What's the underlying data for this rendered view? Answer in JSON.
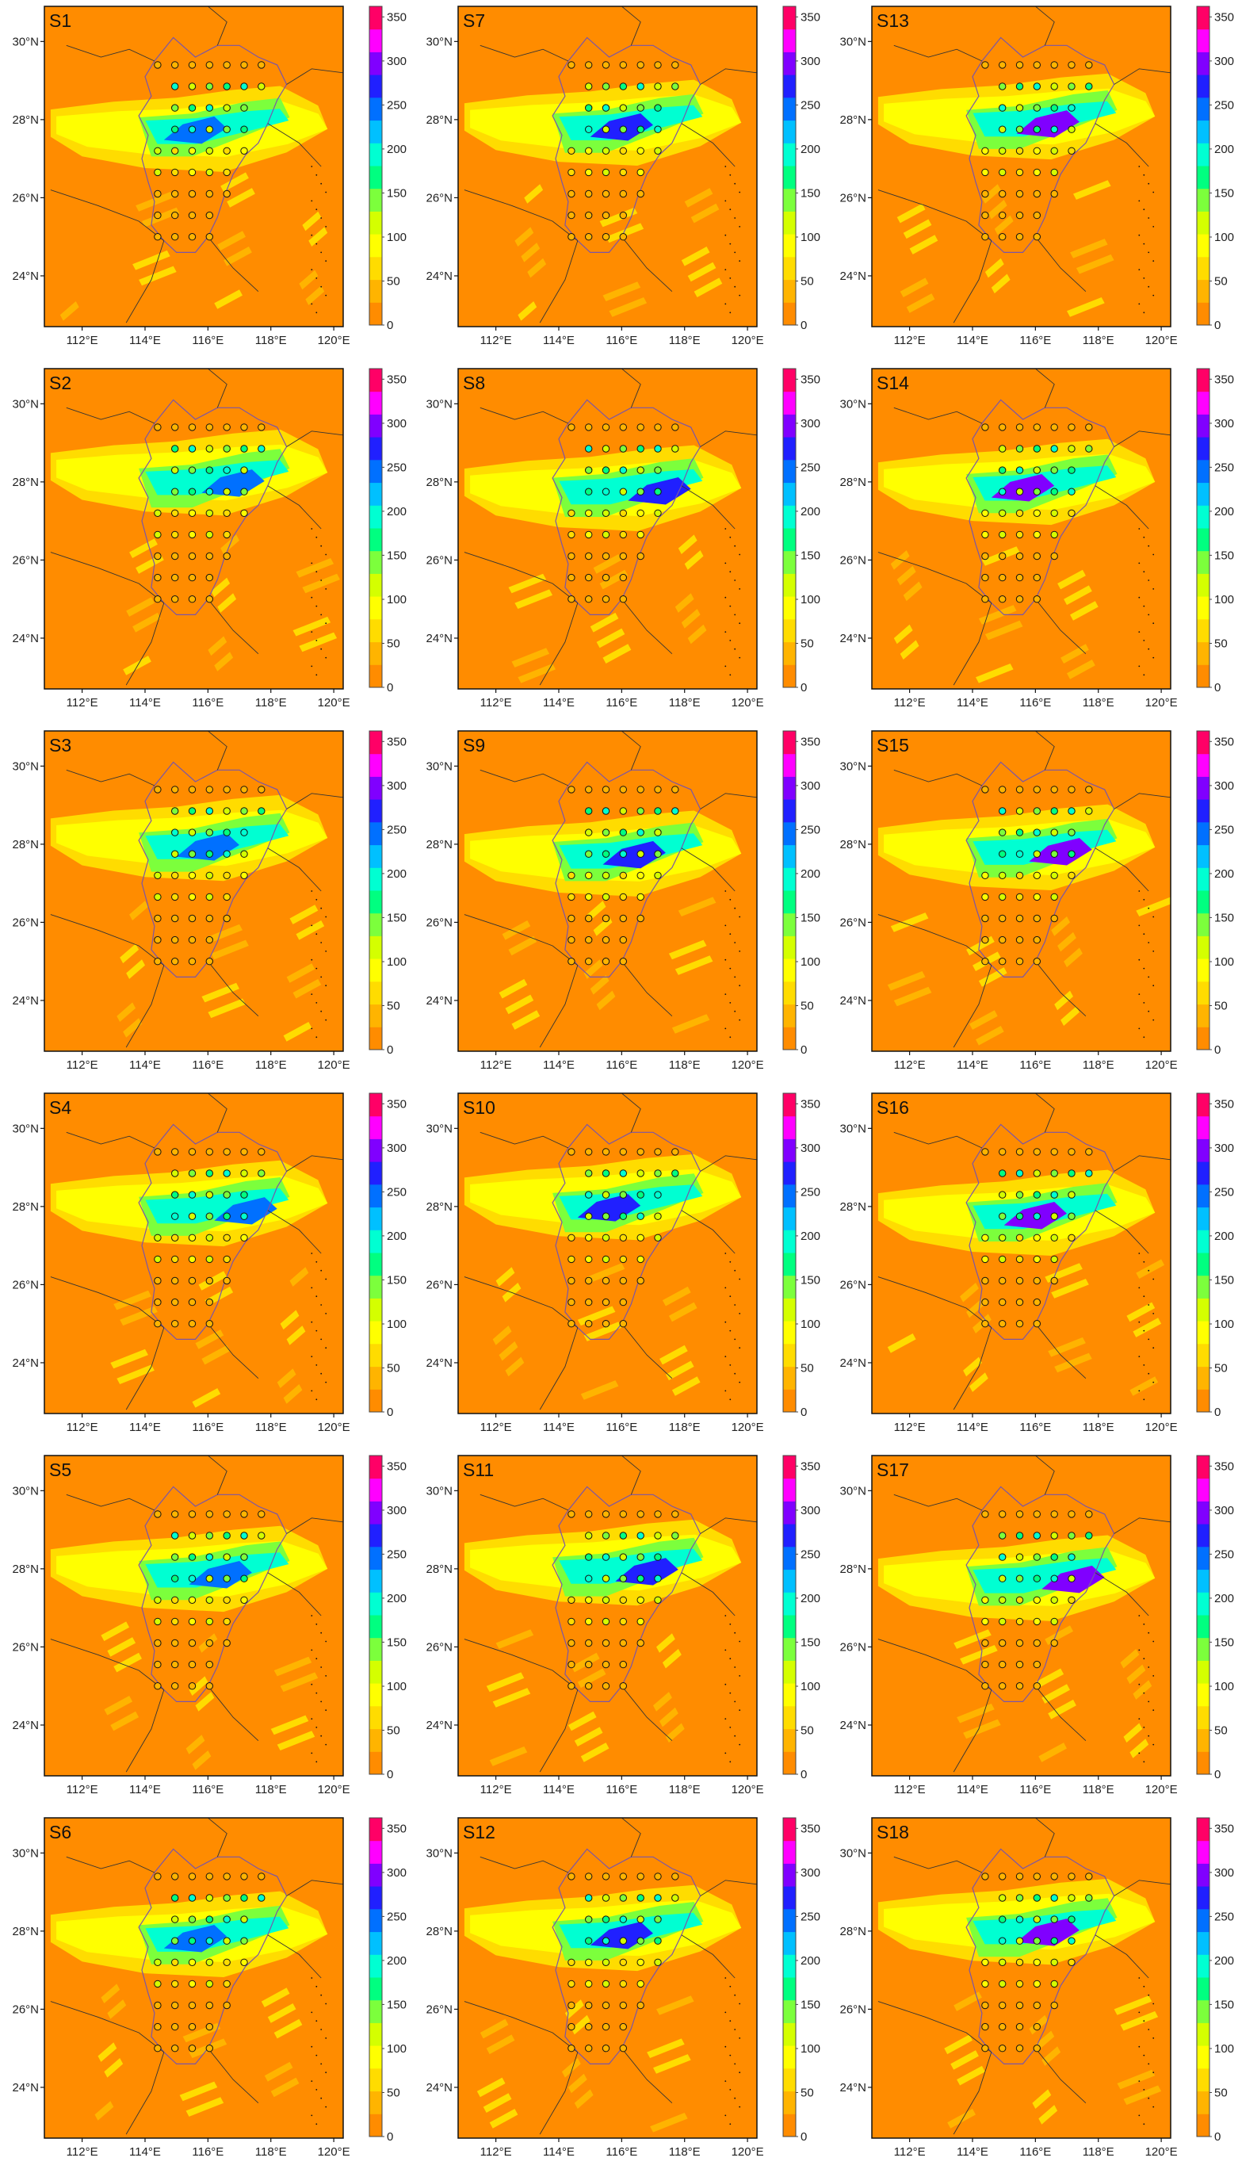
{
  "figure": {
    "panels": [
      {
        "id": "S1",
        "title": "S1"
      },
      {
        "id": "S7",
        "title": "S7"
      },
      {
        "id": "S13",
        "title": "S13"
      },
      {
        "id": "S2",
        "title": "S2"
      },
      {
        "id": "S8",
        "title": "S8"
      },
      {
        "id": "S14",
        "title": "S14"
      },
      {
        "id": "S3",
        "title": "S3"
      },
      {
        "id": "S9",
        "title": "S9"
      },
      {
        "id": "S15",
        "title": "S15"
      },
      {
        "id": "S4",
        "title": "S4"
      },
      {
        "id": "S10",
        "title": "S10"
      },
      {
        "id": "S16",
        "title": "S16"
      },
      {
        "id": "S5",
        "title": "S5"
      },
      {
        "id": "S11",
        "title": "S11"
      },
      {
        "id": "S17",
        "title": "S17"
      },
      {
        "id": "S6",
        "title": "S6"
      },
      {
        "id": "S12",
        "title": "S12"
      },
      {
        "id": "S18",
        "title": "S18"
      }
    ],
    "x_ticks": [
      "112°E",
      "114°E",
      "116°E",
      "118°E",
      "120°E"
    ],
    "y_ticks": [
      "30°N",
      "28°N",
      "26°N",
      "24°N"
    ],
    "colorbar_ticks": [
      "350",
      "300",
      "250",
      "200",
      "150",
      "100",
      "50",
      "0"
    ],
    "colors": {
      "background": "#ff8c00",
      "scale": [
        "#ff8c00",
        "#ffb400",
        "#ffdc00",
        "#ffff00",
        "#d4ff00",
        "#7cff3c",
        "#00ff80",
        "#00ffd2",
        "#00c0ff",
        "#0070ff",
        "#2020ff",
        "#8000ff",
        "#ff00ff",
        "#ff0066"
      ]
    }
  }
}
